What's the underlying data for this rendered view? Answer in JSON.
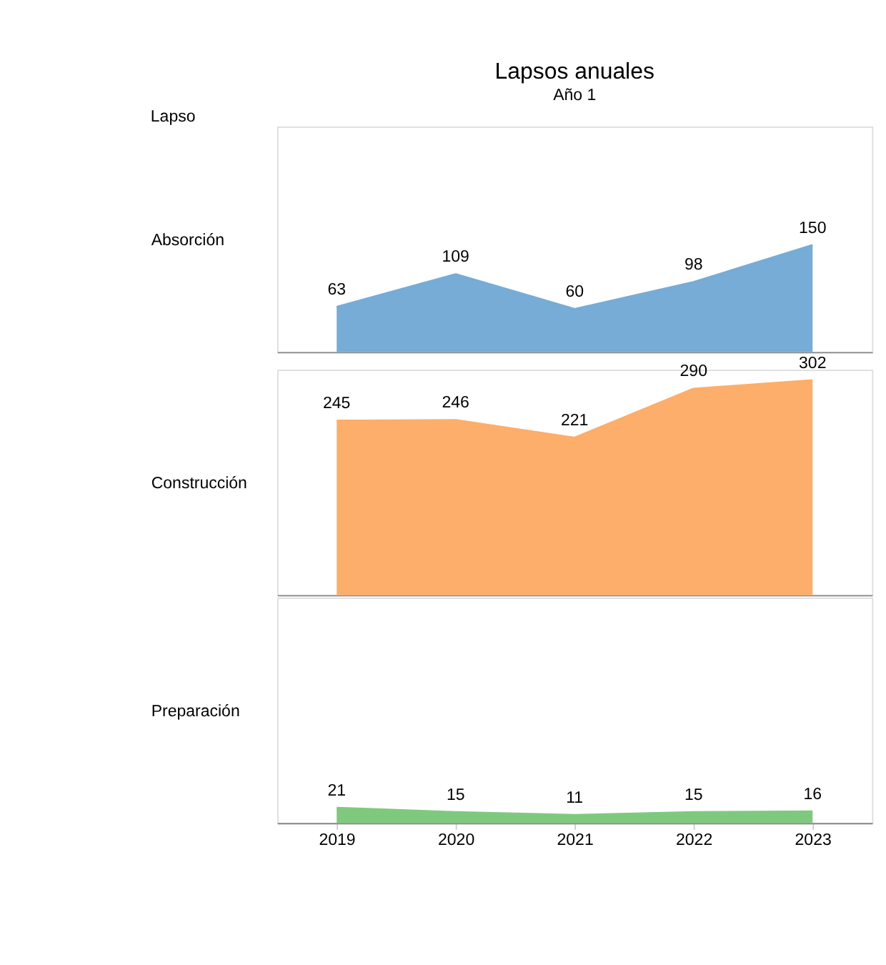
{
  "chart_data": [
    {
      "type": "area",
      "title": "Lapsos anuales",
      "subtitle": "Año 1",
      "annotations": [
        "Lapso"
      ],
      "ylabel": "Absorción",
      "categories": [
        "2019",
        "2020",
        "2021",
        "2022",
        "2023"
      ],
      "values": [
        63,
        109,
        60,
        98,
        150
      ],
      "color": "#76acd6",
      "data_labels": true,
      "tick_labels": false,
      "grid": false
    },
    {
      "type": "area",
      "ylabel": "Construcción",
      "categories": [
        "2019",
        "2020",
        "2021",
        "2022",
        "2023"
      ],
      "values": [
        245,
        246,
        221,
        290,
        302
      ],
      "color": "#fdae6b",
      "data_labels": true,
      "tick_labels": false,
      "grid": false
    },
    {
      "type": "area",
      "ylabel": "Preparación",
      "categories": [
        "2019",
        "2020",
        "2021",
        "2022",
        "2023"
      ],
      "values": [
        21,
        15,
        11,
        15,
        16
      ],
      "color": "#7fc97f",
      "data_labels": true,
      "tick_labels": "x",
      "grid": false
    }
  ]
}
